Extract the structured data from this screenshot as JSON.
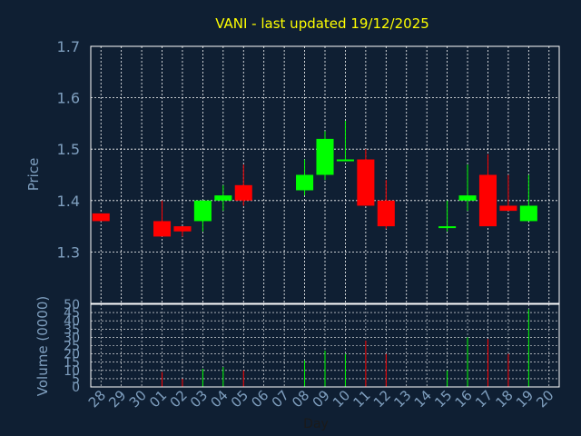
{
  "chart_data": {
    "type": "candlestick",
    "title": "VANI - last updated 19/12/2025",
    "xlabel": "Day",
    "price_ylabel": "Price",
    "volume_ylabel": "Volume (0000)",
    "price_ylim": [
      1.2,
      1.7
    ],
    "price_ticks": [
      1.3,
      1.4,
      1.5,
      1.6,
      1.7
    ],
    "volume_ylim": [
      0,
      50
    ],
    "volume_ticks": [
      0,
      5,
      10,
      15,
      20,
      25,
      30,
      35,
      40,
      45,
      50
    ],
    "grid": true,
    "colors": {
      "background": "#0f1f33",
      "title": "#ffff00",
      "axis_text": "#7f9fbf",
      "up": "#00ff00",
      "down": "#ff0000",
      "grid": "#ffffff",
      "frame": "#ffffff"
    },
    "days": [
      "28",
      "29",
      "30",
      "01",
      "02",
      "03",
      "04",
      "05",
      "06",
      "07",
      "08",
      "09",
      "10",
      "11",
      "12",
      "13",
      "14",
      "15",
      "16",
      "17",
      "18",
      "19",
      "20"
    ],
    "candles": [
      {
        "day": "28",
        "open": 1.375,
        "close": 1.36,
        "high": 1.375,
        "low": 1.36,
        "volume": 0
      },
      {
        "day": "01",
        "open": 1.36,
        "close": 1.33,
        "high": 1.4,
        "low": 1.33,
        "volume": 9
      },
      {
        "day": "02",
        "open": 1.35,
        "close": 1.34,
        "high": 1.35,
        "low": 1.33,
        "volume": 5
      },
      {
        "day": "03",
        "open": 1.36,
        "close": 1.4,
        "high": 1.4,
        "low": 1.34,
        "volume": 11
      },
      {
        "day": "04",
        "open": 1.4,
        "close": 1.41,
        "high": 1.43,
        "low": 1.38,
        "volume": 12
      },
      {
        "day": "05",
        "open": 1.43,
        "close": 1.4,
        "high": 1.47,
        "low": 1.39,
        "volume": 10
      },
      {
        "day": "08",
        "open": 1.42,
        "close": 1.45,
        "high": 1.48,
        "low": 1.41,
        "volume": 16
      },
      {
        "day": "09",
        "open": 1.45,
        "close": 1.52,
        "high": 1.535,
        "low": 1.44,
        "volume": 22
      },
      {
        "day": "10",
        "open": 1.478,
        "close": 1.48,
        "high": 1.555,
        "low": 1.478,
        "volume": 20
      },
      {
        "day": "11",
        "open": 1.48,
        "close": 1.39,
        "high": 1.5,
        "low": 1.39,
        "volume": 28
      },
      {
        "day": "12",
        "open": 1.4,
        "close": 1.35,
        "high": 1.44,
        "low": 1.345,
        "volume": 20
      },
      {
        "day": "15",
        "open": 1.348,
        "close": 1.35,
        "high": 1.4,
        "low": 1.34,
        "volume": 10
      },
      {
        "day": "16",
        "open": 1.4,
        "close": 1.41,
        "high": 1.47,
        "low": 1.38,
        "volume": 30
      },
      {
        "day": "17",
        "open": 1.45,
        "close": 1.35,
        "high": 1.49,
        "low": 1.35,
        "volume": 29
      },
      {
        "day": "18",
        "open": 1.39,
        "close": 1.38,
        "high": 1.45,
        "low": 1.38,
        "volume": 20
      },
      {
        "day": "19",
        "open": 1.36,
        "close": 1.39,
        "high": 1.45,
        "low": 1.36,
        "volume": 47
      }
    ]
  }
}
